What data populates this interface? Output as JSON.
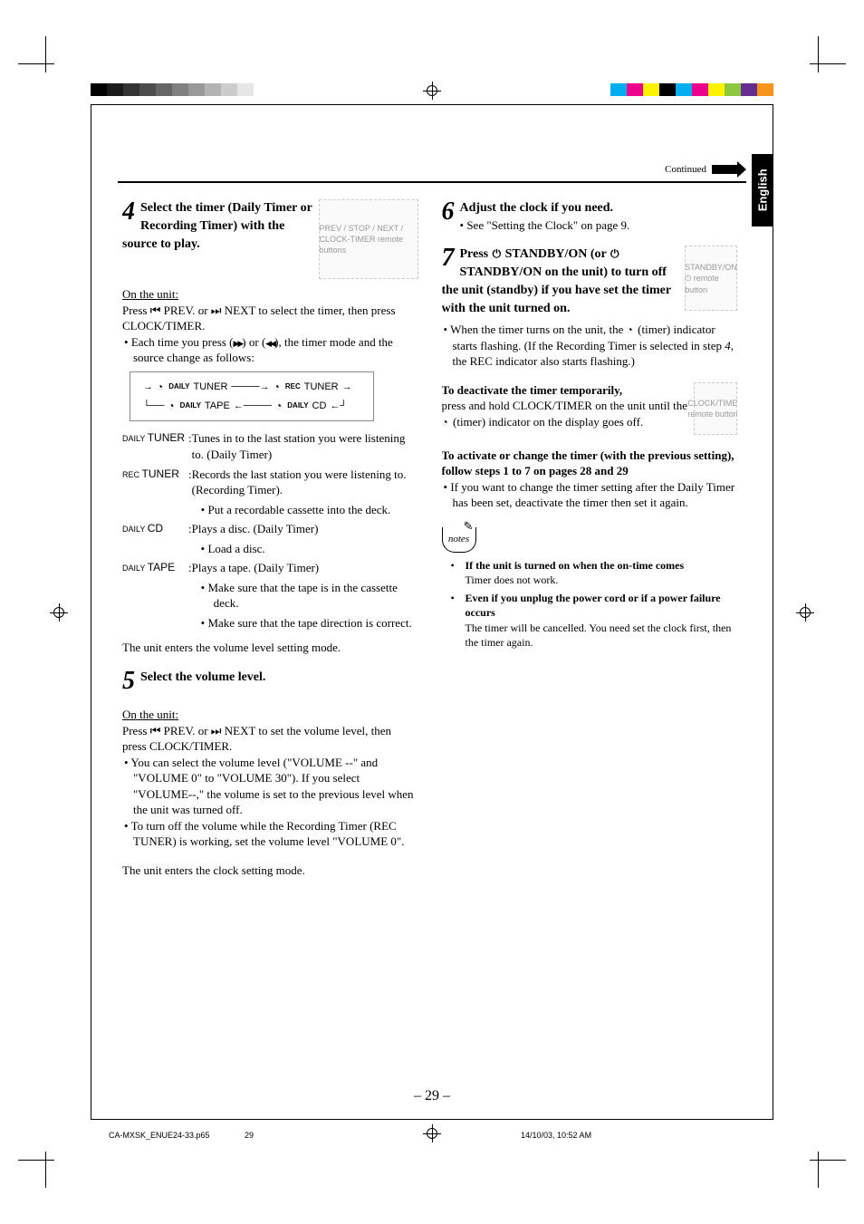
{
  "lang_tab": "English",
  "continued": "Continued",
  "header_rule_color": "#000000",
  "page_number": "– 29 –",
  "footer": {
    "file": "CA-MXSK_ENUE24-33.p65",
    "page": "29",
    "date": "14/10/03, 10:52 AM"
  },
  "color_bar_left": [
    "#000000",
    "#1a1a1a",
    "#333333",
    "#4d4d4d",
    "#666666",
    "#808080",
    "#999999",
    "#b3b3b3",
    "#cccccc",
    "#e6e6e6"
  ],
  "color_bar_right": [
    "#00aeef",
    "#ec008c",
    "#fff200",
    "#000000",
    "#00aeef",
    "#ec008c",
    "#fff200",
    "#8dc63f",
    "#662d91",
    "#f7941e"
  ],
  "left": {
    "step4": {
      "num": "4",
      "title": "Select the timer (Daily Timer or Recording Timer) with the source to play.",
      "remote_fig_label": "PREV / STOP / NEXT / CLOCK-TIMER remote buttons",
      "on_unit_heading": "On the unit:",
      "on_unit_text_a": "Press ",
      "on_unit_text_b": " PREV. or ",
      "on_unit_text_c": " NEXT to select the timer, then press CLOCK/TIMER.",
      "each_time_a": "Each time you press (",
      "each_time_b": ") or (",
      "each_time_c": "), the timer mode and the source change as follows:",
      "cycle": {
        "daily_label": "DAILY",
        "rec_label": "REC",
        "items": [
          "TUNER",
          "TUNER",
          "CD",
          "TAPE"
        ]
      },
      "rows": [
        {
          "label_small": "DAILY",
          "label_big": "TUNER",
          "sep": ":",
          "text": "Tunes in to the last station you were listening to. (Daily Timer)"
        },
        {
          "label_small": "REC",
          "label_big": "TUNER",
          "sep": ":",
          "text": "Records the last station you were listening to. (Recording Timer).",
          "sub": [
            "Put a recordable cassette into the deck."
          ]
        },
        {
          "label_small": "DAILY",
          "label_big": "CD",
          "sep": ":",
          "text": "Plays a disc. (Daily Timer)",
          "sub": [
            "Load a disc."
          ]
        },
        {
          "label_small": "DAILY",
          "label_big": "TAPE",
          "sep": ":",
          "text": "Plays a tape. (Daily Timer)",
          "sub": [
            "Make sure that the tape is in the cassette deck.",
            "Make sure that the tape direction is correct."
          ]
        }
      ],
      "enter_mode": "The unit enters the volume level setting mode."
    },
    "step5": {
      "num": "5",
      "title": "Select the volume level.",
      "on_unit_heading": "On the unit:",
      "press_a": "Press ",
      "press_b": " PREV. or ",
      "press_c": " NEXT to set the volume level, then press CLOCK/TIMER.",
      "bullets": [
        "You can select the volume level (\"VOLUME --\" and \"VOLUME 0\" to \"VOLUME 30\").\nIf you select \"VOLUME--,\" the volume is set to the previous level when the unit was turned off.",
        "To turn off the volume while the Recording Timer (REC TUNER) is working, set the volume level \"VOLUME 0\"."
      ],
      "enter_mode": "The unit enters the clock setting mode."
    }
  },
  "right": {
    "step6": {
      "num": "6",
      "title": "Adjust the clock if you need.",
      "see": "See \"Setting the Clock\" on page 9."
    },
    "step7": {
      "num": "7",
      "title_a": "Press ",
      "title_b": " STANDBY/ON (or ",
      "title_c": " STANDBY/ON on the unit) to turn off the unit (standby) if you have set the timer with the unit turned on.",
      "standby_fig_label": "STANDBY/ON ⏻ remote button",
      "bullet_a": "When the timer turns on the unit, the ",
      "bullet_b": " (timer) indicator starts flashing. (If the Recording Timer is selected in step ",
      "bullet_step": "4",
      "bullet_c": ", the REC indicator also starts flashing.)",
      "deact_heading": "To deactivate the timer temporarily,",
      "clocktimer_fig_label": "CLOCK/TIMER remote button",
      "deact_text_a": "press and hold CLOCK/TIMER on the unit until the ",
      "deact_text_b": " (timer) indicator on the display goes off.",
      "activate_heading": "To activate or change the timer (with the previous setting), follow steps 1 to 7 on pages 28 and 29",
      "activate_bullet": "If you want to change the timer setting after the Daily Timer has been set, deactivate the timer then set it again."
    },
    "notes": {
      "label": "notes",
      "items": [
        {
          "bold": "If the unit is turned on when the on-time comes",
          "text": "Timer does not work."
        },
        {
          "bold": "Even if you unplug the power cord or if a power failure occurs",
          "text": "The timer will be cancelled. You need set the clock first, then the timer again."
        }
      ]
    }
  }
}
